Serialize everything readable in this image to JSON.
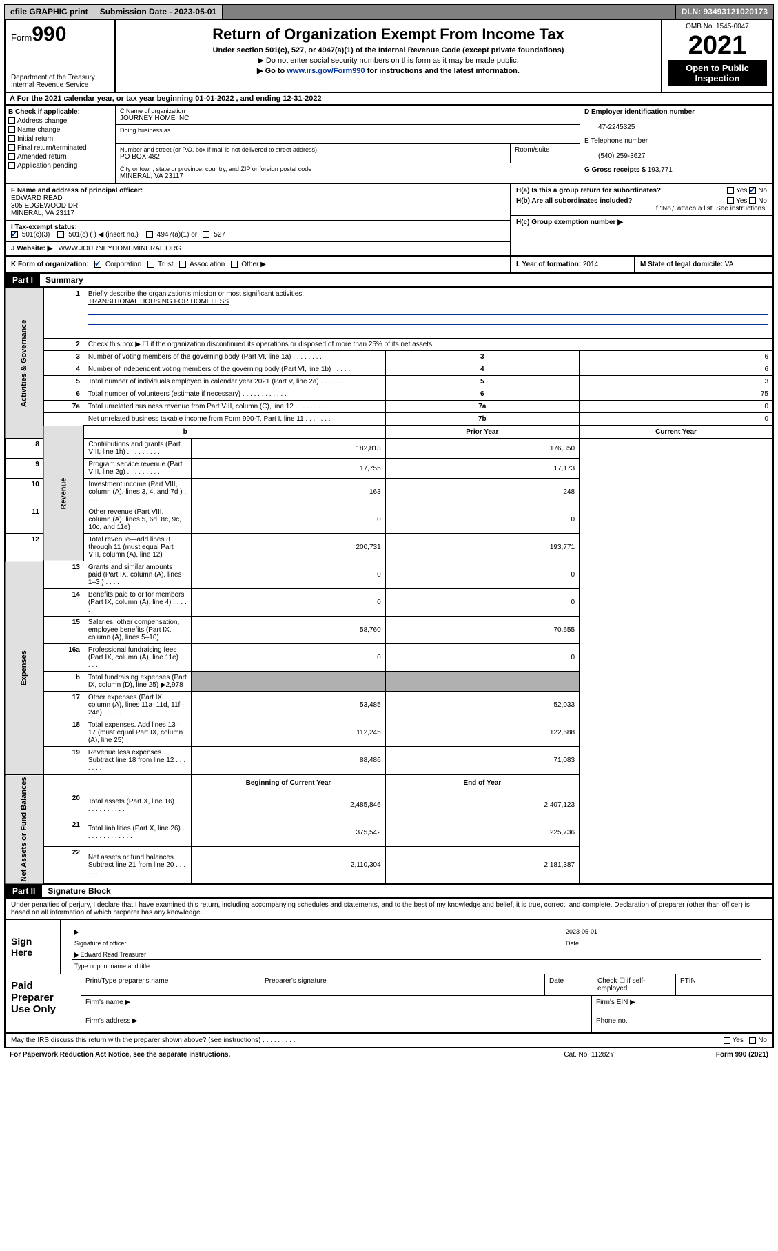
{
  "topbar": {
    "efile": "efile GRAPHIC print",
    "submission": "Submission Date - 2023-05-01",
    "dln": "DLN: 93493121020173"
  },
  "header": {
    "form_prefix": "Form",
    "form_num": "990",
    "dept1": "Department of the Treasury",
    "dept2": "Internal Revenue Service",
    "title": "Return of Organization Exempt From Income Tax",
    "sub1": "Under section 501(c), 527, or 4947(a)(1) of the Internal Revenue Code (except private foundations)",
    "sub2": "▶ Do not enter social security numbers on this form as it may be made public.",
    "sub3_pre": "▶ Go to ",
    "sub3_link": "www.irs.gov/Form990",
    "sub3_post": " for instructions and the latest information.",
    "omb": "OMB No. 1545-0047",
    "year": "2021",
    "open1": "Open to Public",
    "open2": "Inspection"
  },
  "rowA": "A For the 2021 calendar year, or tax year beginning 01-01-2022   , and ending 12-31-2022",
  "boxB": {
    "title": "B Check if applicable:",
    "items": [
      "Address change",
      "Name change",
      "Initial return",
      "Final return/terminated",
      "Amended return",
      "Application pending"
    ]
  },
  "boxC": {
    "lbl_name": "C Name of organization",
    "org_name": "JOURNEY HOME INC",
    "lbl_dba": "Doing business as",
    "dba": "",
    "lbl_street": "Number and street (or P.O. box if mail is not delivered to street address)",
    "street": "PO BOX 482",
    "lbl_room": "Room/suite",
    "room": "",
    "lbl_city": "City or town, state or province, country, and ZIP or foreign postal code",
    "city": "MINERAL, VA  23117"
  },
  "boxD": {
    "lbl": "D Employer identification number",
    "val": "47-2245325"
  },
  "boxE": {
    "lbl": "E Telephone number",
    "val": "(540) 259-3627"
  },
  "boxG": {
    "lbl": "G Gross receipts $",
    "val": "193,771"
  },
  "boxF": {
    "lbl": "F Name and address of principal officer:",
    "l1": "EDWARD READ",
    "l2": "305 EDGEWOOD DR",
    "l3": "MINERAL, VA  23117"
  },
  "boxH": {
    "ha": "H(a)  Is this a group return for subordinates?",
    "hb": "H(b)  Are all subordinates included?",
    "hb2": "If \"No,\" attach a list. See instructions.",
    "hc": "H(c)  Group exemption number ▶",
    "yes": "Yes",
    "no": "No"
  },
  "boxI": {
    "lbl": "I   Tax-exempt status:",
    "o1": "501(c)(3)",
    "o2": "501(c) (  ) ◀ (insert no.)",
    "o3": "4947(a)(1) or",
    "o4": "527"
  },
  "boxJ": {
    "lbl": "J   Website: ▶",
    "val": "WWW.JOURNEYHOMEMINERAL.ORG"
  },
  "boxK": {
    "lbl": "K Form of organization:",
    "o1": "Corporation",
    "o2": "Trust",
    "o3": "Association",
    "o4": "Other ▶"
  },
  "boxL": {
    "lbl": "L Year of formation:",
    "val": "2014"
  },
  "boxM": {
    "lbl": "M State of legal domicile:",
    "val": "VA"
  },
  "part1": {
    "bar": "Part I",
    "title": "Summary"
  },
  "summary": {
    "tabs": [
      "Activities & Governance",
      "Revenue",
      "Expenses",
      "Net Assets or Fund Balances"
    ],
    "q1": "Briefly describe the organization's mission or most significant activities:",
    "q1v": "TRANSITIONAL HOUSING FOR HOMELESS",
    "q2": "Check this box ▶ ☐  if the organization discontinued its operations or disposed of more than 25% of its net assets.",
    "rows_gov": [
      {
        "n": "3",
        "t": "Number of voting members of the governing body (Part VI, line 1a)   .    .    .    .    .    .    .    .",
        "rn": "3",
        "v": "6"
      },
      {
        "n": "4",
        "t": "Number of independent voting members of the governing body (Part VI, line 1b)    .    .    .    .    .",
        "rn": "4",
        "v": "6"
      },
      {
        "n": "5",
        "t": "Total number of individuals employed in calendar year 2021 (Part V, line 2a)    .    .    .    .    .    .",
        "rn": "5",
        "v": "3"
      },
      {
        "n": "6",
        "t": "Total number of volunteers (estimate if necessary)    .    .    .    .    .    .    .    .    .    .    .    .",
        "rn": "6",
        "v": "75"
      },
      {
        "n": "7a",
        "t": "Total unrelated business revenue from Part VIII, column (C), line 12    .    .    .    .    .    .    .    .",
        "rn": "7a",
        "v": "0"
      },
      {
        "n": "",
        "t": "Net unrelated business taxable income from Form 990-T, Part I, line 11    .    .    .    .    .    .    .",
        "rn": "7b",
        "v": "0"
      }
    ],
    "hdr_prior": "Prior Year",
    "hdr_curr": "Current Year",
    "rows_rev": [
      {
        "n": "8",
        "t": "Contributions and grants (Part VIII, line 1h)    .    .    .    .    .    .    .    .    .",
        "p": "182,813",
        "c": "176,350"
      },
      {
        "n": "9",
        "t": "Program service revenue (Part VIII, line 2g)    .    .    .    .    .    .    .    .    .",
        "p": "17,755",
        "c": "17,173"
      },
      {
        "n": "10",
        "t": "Investment income (Part VIII, column (A), lines 3, 4, and 7d )    .    .    .    .    .",
        "p": "163",
        "c": "248"
      },
      {
        "n": "11",
        "t": "Other revenue (Part VIII, column (A), lines 5, 6d, 8c, 9c, 10c, and 11e)",
        "p": "0",
        "c": "0"
      },
      {
        "n": "12",
        "t": "Total revenue—add lines 8 through 11 (must equal Part VIII, column (A), line 12)",
        "p": "200,731",
        "c": "193,771"
      }
    ],
    "rows_exp": [
      {
        "n": "13",
        "t": "Grants and similar amounts paid (Part IX, column (A), lines 1–3 )    .    .    .    .",
        "p": "0",
        "c": "0"
      },
      {
        "n": "14",
        "t": "Benefits paid to or for members (Part IX, column (A), line 4)    .    .    .    .    .",
        "p": "0",
        "c": "0"
      },
      {
        "n": "15",
        "t": "Salaries, other compensation, employee benefits (Part IX, column (A), lines 5–10)",
        "p": "58,760",
        "c": "70,655"
      },
      {
        "n": "16a",
        "t": "Professional fundraising fees (Part IX, column (A), line 11e)    .    .    .    .    .",
        "p": "0",
        "c": "0"
      },
      {
        "n": "b",
        "t": "Total fundraising expenses (Part IX, column (D), line 25) ▶2,978",
        "grey": true
      },
      {
        "n": "17",
        "t": "Other expenses (Part IX, column (A), lines 11a–11d, 11f–24e)    .    .    .    .    .",
        "p": "53,485",
        "c": "52,033"
      },
      {
        "n": "18",
        "t": "Total expenses. Add lines 13–17 (must equal Part IX, column (A), line 25)",
        "p": "112,245",
        "c": "122,688"
      },
      {
        "n": "19",
        "t": "Revenue less expenses. Subtract line 18 from line 12    .    .    .    .    .    .    .",
        "p": "88,486",
        "c": "71,083"
      }
    ],
    "hdr_beg": "Beginning of Current Year",
    "hdr_end": "End of Year",
    "rows_net": [
      {
        "n": "20",
        "t": "Total assets (Part X, line 16)    .    .    .    .    .    .    .    .    .    .    .    .    .",
        "p": "2,485,846",
        "c": "2,407,123"
      },
      {
        "n": "21",
        "t": "Total liabilities (Part X, line 26)    .    .    .    .    .    .    .    .    .    .    .    .    .",
        "p": "375,542",
        "c": "225,736"
      },
      {
        "n": "22",
        "t": "Net assets or fund balances. Subtract line 21 from line 20    .    .    .    .    .    .",
        "p": "2,110,304",
        "c": "2,181,387"
      }
    ]
  },
  "part2": {
    "bar": "Part II",
    "title": "Signature Block"
  },
  "sig": {
    "decl": "Under penalties of perjury, I declare that I have examined this return, including accompanying schedules and statements, and to the best of my knowledge and belief, it is true, correct, and complete. Declaration of preparer (other than officer) is based on all information of which preparer has any knowledge.",
    "sign_here": "Sign Here",
    "sig_officer": "Signature of officer",
    "sig_date": "2023-05-01",
    "date_lbl": "Date",
    "name": "Edward Read  Treasurer",
    "name_lbl": "Type or print name and title",
    "paid": "Paid Preparer Use Only",
    "pp_name": "Print/Type preparer's name",
    "pp_sig": "Preparer's signature",
    "pp_date": "Date",
    "pp_check": "Check ☐ if self-employed",
    "pp_ptin": "PTIN",
    "pp_firm": "Firm's name   ▶",
    "pp_ein": "Firm's EIN ▶",
    "pp_addr": "Firm's address ▶",
    "pp_phone": "Phone no."
  },
  "footer": {
    "discuss": "May the IRS discuss this return with the preparer shown above? (see instructions)    .    .    .    .    .    .    .    .    .    .",
    "yes": "Yes",
    "no": "No",
    "pra": "For Paperwork Reduction Act Notice, see the separate instructions.",
    "cat": "Cat. No. 11282Y",
    "form": "Form 990 (2021)"
  }
}
